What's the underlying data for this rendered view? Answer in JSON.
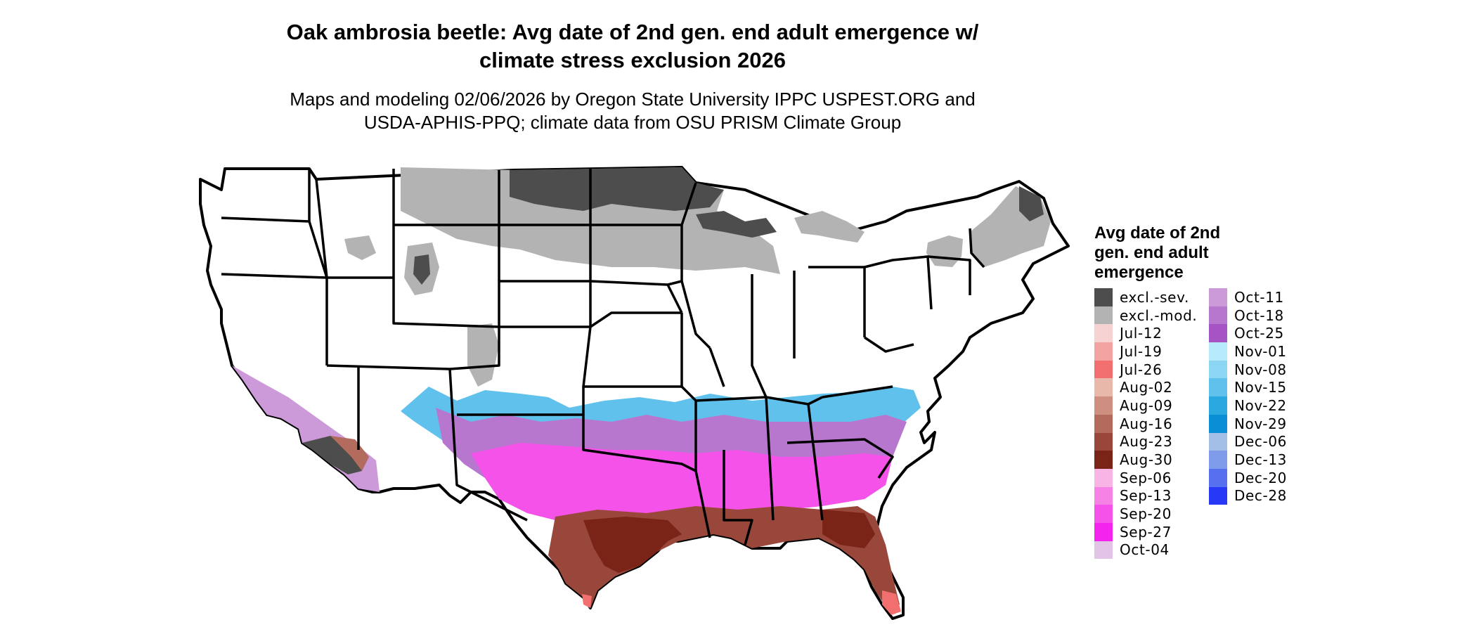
{
  "title": {
    "line1": "Oak ambrosia beetle: Avg date of 2nd gen. end adult emergence w/",
    "line2": "climate stress exclusion 2026"
  },
  "subtitle": {
    "line1": "Maps and modeling 02/06/2026 by Oregon State University IPPC USPEST.ORG and",
    "line2": "USDA-APHIS-PPQ; climate data from OSU PRISM Climate Group"
  },
  "legend": {
    "title_line1": "Avg date of 2nd",
    "title_line2": "gen. end adult",
    "title_line3": "emergence",
    "col1": [
      {
        "label": "excl.-sev.",
        "color": "#4d4d4d"
      },
      {
        "label": "excl.-mod.",
        "color": "#b3b3b3"
      },
      {
        "label": "Jul-12",
        "color": "#f7d2d2"
      },
      {
        "label": "Jul-19",
        "color": "#f4a3a3"
      },
      {
        "label": "Jul-26",
        "color": "#f26f6f"
      },
      {
        "label": "Aug-02",
        "color": "#e8b8aa"
      },
      {
        "label": "Aug-09",
        "color": "#cf8f80"
      },
      {
        "label": "Aug-16",
        "color": "#b36b5d"
      },
      {
        "label": "Aug-23",
        "color": "#98473a"
      },
      {
        "label": "Aug-30",
        "color": "#7a2417"
      },
      {
        "label": "Sep-06",
        "color": "#f8b4e4"
      },
      {
        "label": "Sep-13",
        "color": "#f782e6"
      },
      {
        "label": "Sep-20",
        "color": "#f552ea"
      },
      {
        "label": "Sep-27",
        "color": "#f224ee"
      },
      {
        "label": "Oct-04",
        "color": "#e2c4e6"
      }
    ],
    "col2": [
      {
        "label": "Oct-11",
        "color": "#cd9ad9"
      },
      {
        "label": "Oct-18",
        "color": "#b877cf"
      },
      {
        "label": "Oct-25",
        "color": "#a653c4"
      },
      {
        "label": "Nov-01",
        "color": "#b5ebfb"
      },
      {
        "label": "Nov-08",
        "color": "#8cd6f3"
      },
      {
        "label": "Nov-15",
        "color": "#60c2ec"
      },
      {
        "label": "Nov-22",
        "color": "#2aa9e0"
      },
      {
        "label": "Nov-29",
        "color": "#0b8fd4"
      },
      {
        "label": "Dec-06",
        "color": "#a3bfe8"
      },
      {
        "label": "Dec-13",
        "color": "#7f9cea"
      },
      {
        "label": "Dec-20",
        "color": "#5670f0"
      },
      {
        "label": "Dec-28",
        "color": "#2838f7"
      }
    ]
  }
}
